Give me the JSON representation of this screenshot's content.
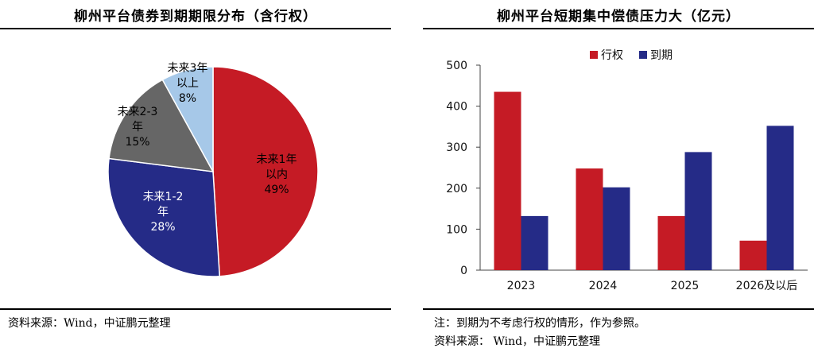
{
  "colors": {
    "red": "#C51B25",
    "blue": "#252B87",
    "gray": "#666666",
    "lightblue": "#A6C8E8"
  },
  "titles": {
    "left": "柳州平台债券到期期限分布（含行权）",
    "right": "柳州平台短期集中偿债压力大（亿元）"
  },
  "notes": {
    "left_source": "资料来源：Wind，中证鹏元整理",
    "right_note": "注：到期为不考虑行权的情形，作为参照。",
    "right_source": "资料来源： Wind，中证鹏元整理"
  },
  "chart_data": [
    {
      "type": "pie",
      "title": "柳州平台债券到期期限分布（含行权）",
      "slices": [
        {
          "label_lines": [
            "未来1年",
            "以内"
          ],
          "pct_label": "49%",
          "value": 49,
          "color": "#C51B25",
          "text_color": "#000000"
        },
        {
          "label_lines": [
            "未来1-2",
            "年"
          ],
          "pct_label": "28%",
          "value": 28,
          "color": "#252B87",
          "text_color": "#ffffff"
        },
        {
          "label_lines": [
            "未来2-3",
            "年"
          ],
          "pct_label": "15%",
          "value": 15,
          "color": "#666666",
          "text_color": "#000000"
        },
        {
          "label_lines": [
            "未来3年",
            "以上"
          ],
          "pct_label": "8%",
          "value": 8,
          "color": "#A6C8E8",
          "text_color": "#000000"
        }
      ]
    },
    {
      "type": "bar",
      "title": "柳州平台短期集中偿债压力大（亿元）",
      "categories": [
        "2023",
        "2024",
        "2025",
        "2026及以后"
      ],
      "series": [
        {
          "name": "行权",
          "color": "#C51B25",
          "values": [
            435,
            248,
            132,
            72
          ]
        },
        {
          "name": "到期",
          "color": "#252B87",
          "values": [
            132,
            202,
            288,
            352
          ]
        }
      ],
      "ylim": [
        0,
        500
      ],
      "yticks": [
        0,
        100,
        200,
        300,
        400,
        500
      ],
      "legend": "top-center",
      "grid": false
    }
  ]
}
